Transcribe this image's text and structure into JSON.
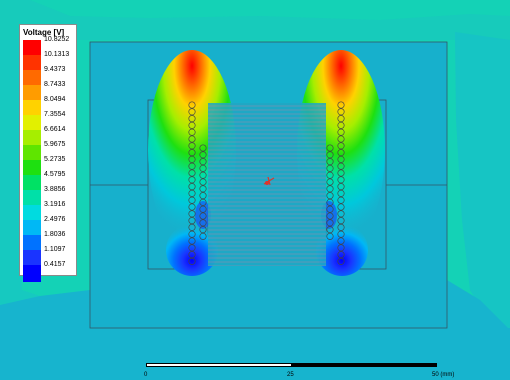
{
  "legend": {
    "title": "Voltage [V]",
    "entries": [
      {
        "label": "10.8252",
        "color": "#ff0000"
      },
      {
        "label": "10.1313",
        "color": "#ff3300"
      },
      {
        "label": "9.4373",
        "color": "#ff6a00"
      },
      {
        "label": "8.7433",
        "color": "#ff9c00"
      },
      {
        "label": "8.0494",
        "color": "#ffd200"
      },
      {
        "label": "7.3554",
        "color": "#e2f000"
      },
      {
        "label": "6.6614",
        "color": "#a6ee00"
      },
      {
        "label": "5.9675",
        "color": "#5fe500"
      },
      {
        "label": "5.2735",
        "color": "#1ee010"
      },
      {
        "label": "4.5795",
        "color": "#00e164"
      },
      {
        "label": "3.8856",
        "color": "#00e0a8"
      },
      {
        "label": "3.1916",
        "color": "#00dbe0"
      },
      {
        "label": "2.4976",
        "color": "#00b8f5"
      },
      {
        "label": "1.8036",
        "color": "#0072ff"
      },
      {
        "label": "1.1097",
        "color": "#1a34ff"
      },
      {
        "label": "0.4157",
        "color": "#0000ff"
      }
    ],
    "min_label": "0.4157"
  },
  "scale": {
    "ticks": [
      "0",
      "25",
      "50 (mm)"
    ]
  },
  "colors": {
    "background_outer": "#14d2b6",
    "background_mid": "#17b4ce",
    "axis_marker": "#e0342a"
  }
}
